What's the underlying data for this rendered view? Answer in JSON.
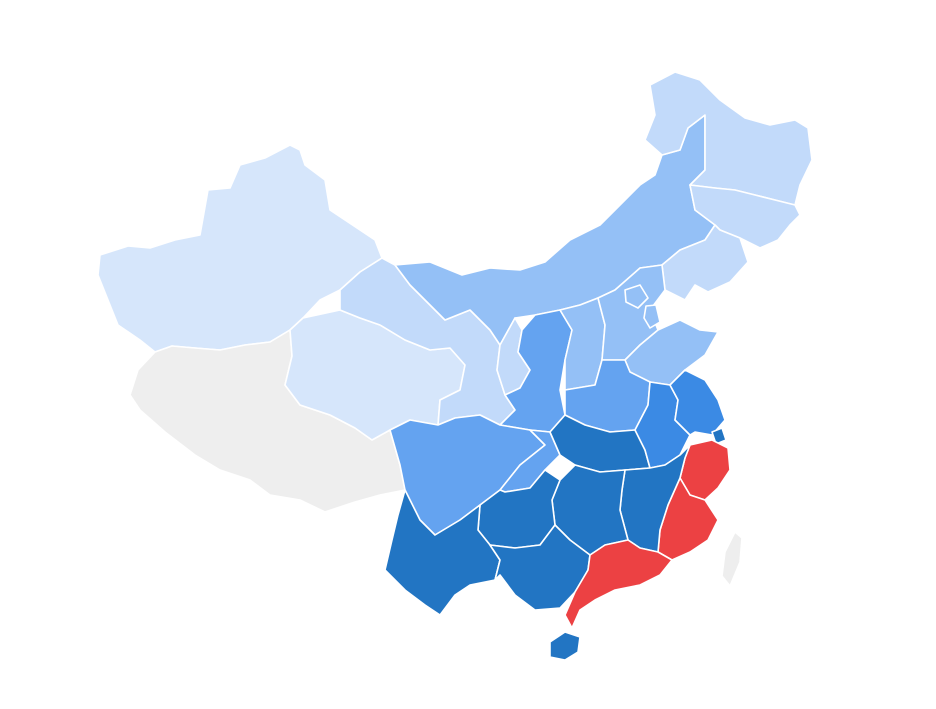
{
  "map": {
    "legend": [],
    "colors": {
      "highlight": "#ec4143",
      "level_1": "#d6e6fb",
      "level_2": "#c2dafa",
      "level_3": "#94c0f6",
      "level_4": "#64a3f0",
      "level_5": "#3b8ae4",
      "level_6": "#2275c3",
      "no_data": "#eeeeee",
      "border": "#ffffff"
    },
    "regions": [
      {
        "id": "xinjiang",
        "level": "level_1"
      },
      {
        "id": "tibet",
        "level": "no_data"
      },
      {
        "id": "qinghai",
        "level": "level_1"
      },
      {
        "id": "gansu",
        "level": "level_2"
      },
      {
        "id": "inner-mongolia",
        "level": "level_3"
      },
      {
        "id": "heilongjiang",
        "level": "level_2"
      },
      {
        "id": "jilin",
        "level": "level_2"
      },
      {
        "id": "liaoning",
        "level": "level_2"
      },
      {
        "id": "ningxia",
        "level": "level_2"
      },
      {
        "id": "shaanxi",
        "level": "level_4"
      },
      {
        "id": "shanxi",
        "level": "level_3"
      },
      {
        "id": "hebei",
        "level": "level_3"
      },
      {
        "id": "beijing",
        "level": "level_3"
      },
      {
        "id": "tianjin",
        "level": "level_3"
      },
      {
        "id": "shandong",
        "level": "level_3"
      },
      {
        "id": "henan",
        "level": "level_4"
      },
      {
        "id": "sichuan",
        "level": "level_4"
      },
      {
        "id": "chongqing",
        "level": "level_4"
      },
      {
        "id": "hubei",
        "level": "level_6"
      },
      {
        "id": "anhui",
        "level": "level_5"
      },
      {
        "id": "jiangsu",
        "level": "level_5"
      },
      {
        "id": "shanghai",
        "level": "level_6"
      },
      {
        "id": "zhejiang",
        "level": "highlight"
      },
      {
        "id": "fujian",
        "level": "highlight"
      },
      {
        "id": "guangdong",
        "level": "highlight"
      },
      {
        "id": "jiangxi",
        "level": "level_6"
      },
      {
        "id": "hunan",
        "level": "level_6"
      },
      {
        "id": "guizhou",
        "level": "level_6"
      },
      {
        "id": "yunnan",
        "level": "level_6"
      },
      {
        "id": "guangxi",
        "level": "level_6"
      },
      {
        "id": "hainan",
        "level": "level_6"
      },
      {
        "id": "taiwan",
        "level": "no_data"
      }
    ]
  }
}
